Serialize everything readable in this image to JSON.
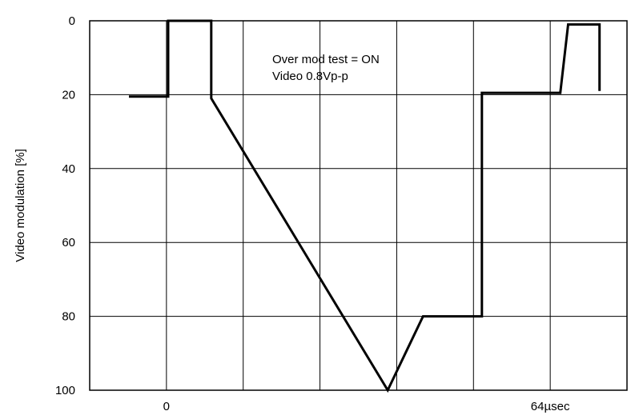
{
  "chart_data": {
    "type": "line",
    "ylabel": "Video modulation [%]",
    "xlabel": "",
    "ylim": [
      0,
      100
    ],
    "y_inverted": true,
    "y_ticks": [
      "0",
      "20",
      "40",
      "60",
      "80",
      "100"
    ],
    "x_tick_labels": [
      "0",
      "64µsec"
    ],
    "grid": true,
    "annotations": [
      "Over mod test = ON",
      "Video 0.8Vp-p"
    ],
    "series": [
      {
        "color": "#000000",
        "x": [
          -10,
          0,
          0,
          11,
          11,
          56,
          65,
          80,
          80,
          100,
          100,
          102,
          102,
          110,
          110
        ],
        "y": [
          20.5,
          20.5,
          0,
          0,
          21,
          100,
          80,
          80,
          19.5,
          19.5,
          19.5,
          1,
          1,
          1,
          19
        ]
      }
    ]
  }
}
